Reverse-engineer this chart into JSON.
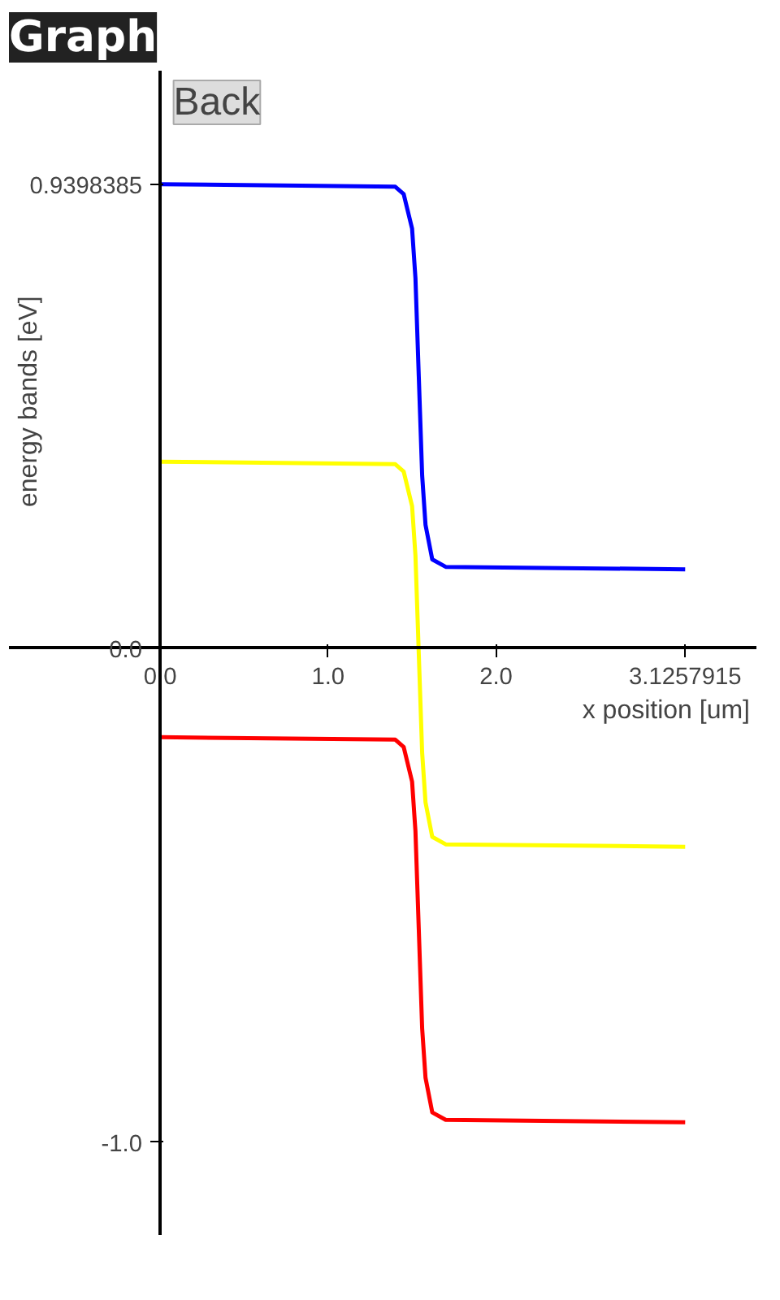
{
  "chart_data": {
    "type": "line",
    "title": "Graph",
    "annotations": [
      "Back"
    ],
    "xlabel": "x position [um]",
    "ylabel": "energy bands [eV]",
    "x": [
      0,
      1.4,
      1.45,
      1.5,
      1.52,
      1.54,
      1.56,
      1.58,
      1.62,
      1.7,
      3.1257915
    ],
    "series": [
      {
        "color": "#0000ff",
        "values": [
          0.94,
          0.935,
          0.92,
          0.85,
          0.75,
          0.55,
          0.35,
          0.25,
          0.18,
          0.165,
          0.16
        ]
      },
      {
        "color": "#ffff00",
        "values": [
          0.378,
          0.373,
          0.358,
          0.288,
          0.188,
          -0.012,
          -0.212,
          -0.312,
          -0.382,
          -0.397,
          -0.402
        ]
      },
      {
        "color": "#ff0000",
        "values": [
          -0.18,
          -0.185,
          -0.2,
          -0.27,
          -0.37,
          -0.57,
          -0.77,
          -0.87,
          -0.94,
          -0.955,
          -0.96
        ]
      }
    ],
    "xlim": [
      -0.9,
      3.55
    ],
    "ylim": [
      -1.19,
      1.17
    ],
    "xticks": [
      {
        "value": 0,
        "label": "0.0"
      },
      {
        "value": 1,
        "label": "1.0"
      },
      {
        "value": 2,
        "label": "2.0"
      },
      3.1257915
    ],
    "yticks": [
      {
        "value": 0.9398385,
        "label": "0.9398385"
      },
      {
        "value": 0,
        "label": "0.0"
      },
      {
        "value": -1,
        "label": "-1.0"
      }
    ],
    "grid": false,
    "marker": "none",
    "line_style": "solid"
  }
}
